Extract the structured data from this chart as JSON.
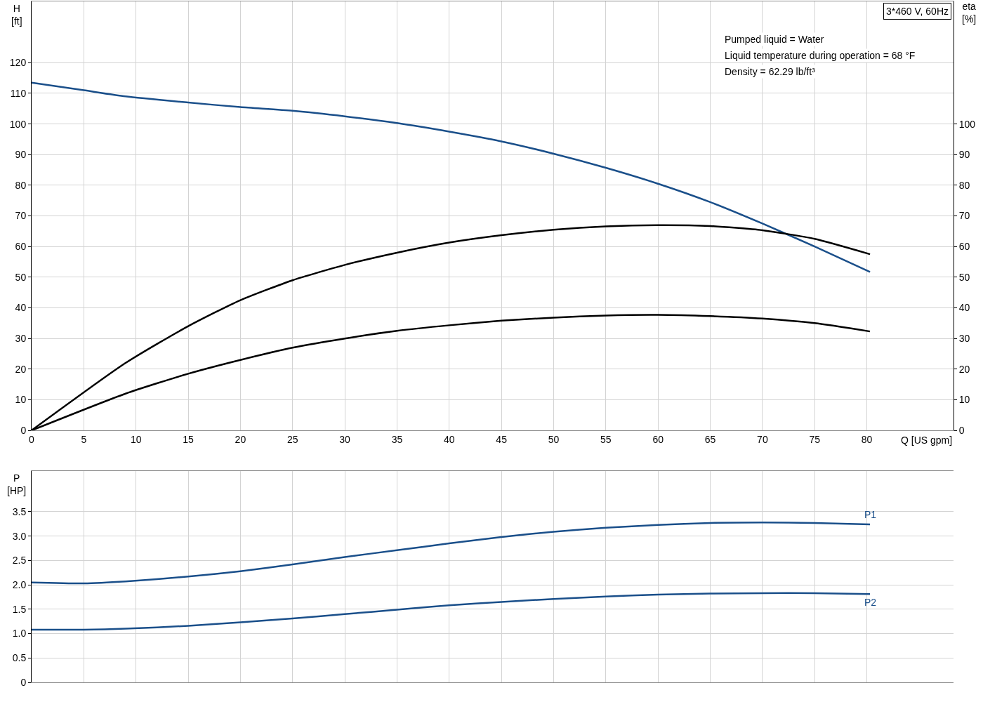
{
  "chart_data": [
    {
      "type": "line",
      "xlabel": "Q [US gpm]",
      "ylabel": "H\n[ft]",
      "y2label": "eta\n[%]",
      "xlim": [
        0,
        88.3
      ],
      "xticks": [
        0,
        5,
        10,
        15,
        20,
        25,
        30,
        35,
        40,
        45,
        50,
        55,
        60,
        65,
        70,
        75,
        80
      ],
      "ylim": [
        0,
        140
      ],
      "yticks": [
        0,
        10,
        20,
        30,
        40,
        50,
        60,
        70,
        80,
        90,
        100,
        110,
        120
      ],
      "y2lim": [
        0,
        140
      ],
      "y2ticks": [
        0,
        10,
        20,
        30,
        40,
        50,
        60,
        70,
        80,
        90,
        100
      ],
      "grid": true,
      "legend": false,
      "marker": "none",
      "line_style": "solid",
      "annotations": [
        "3*460 V, 60Hz",
        "Pumped liquid = Water",
        "Liquid temperature during operation = 68 °F",
        "Density = 62.29 lb/ft³"
      ],
      "series": [
        {
          "color": "#1a4f8a",
          "x": [
            0,
            5,
            9,
            15,
            20,
            25,
            30,
            35,
            40,
            45,
            50,
            55,
            60,
            65,
            70,
            75,
            80.3
          ],
          "values": [
            113.5,
            111,
            109,
            107,
            105.5,
            104.3,
            102.5,
            100.3,
            97.5,
            94.3,
            90.3,
            85.7,
            80.5,
            74.5,
            67.5,
            60,
            51.7
          ]
        },
        {
          "color": "#000000",
          "axis": "y2",
          "x": [
            0,
            9,
            15,
            20,
            25,
            30,
            35,
            40,
            45,
            50,
            55,
            60,
            65,
            70,
            75,
            80.3
          ],
          "values": [
            0,
            22,
            34,
            42.5,
            49,
            54,
            58,
            61.3,
            63.7,
            65.5,
            66.6,
            67,
            66.7,
            65.3,
            62.5,
            57.5
          ]
        },
        {
          "color": "#000000",
          "axis": "y2",
          "x": [
            0,
            9,
            15,
            20,
            25,
            30,
            35,
            40,
            45,
            50,
            55,
            60,
            65,
            70,
            75,
            80.3
          ],
          "values": [
            0,
            12,
            18.5,
            23,
            27,
            30,
            32.5,
            34.3,
            35.8,
            36.8,
            37.5,
            37.7,
            37.3,
            36.5,
            35,
            32.3
          ]
        }
      ]
    },
    {
      "type": "line",
      "ylabel": "P\n[HP]",
      "xlim": [
        0,
        88.3
      ],
      "xticks": [
        0,
        5,
        10,
        15,
        20,
        25,
        30,
        35,
        40,
        45,
        50,
        55,
        60,
        65,
        70,
        75,
        80
      ],
      "ylim": [
        0,
        4.33
      ],
      "yticks": [
        0,
        {
          "value": 0.5,
          "label": "0.5"
        },
        {
          "value": 1,
          "label": "1.0"
        },
        1.5,
        {
          "value": 2,
          "label": "2.0"
        },
        2.5,
        {
          "value": 3,
          "label": "3.0"
        },
        3.5
      ],
      "tick_labels": "y",
      "grid": true,
      "legend": false,
      "marker": "none",
      "line_style": "solid",
      "series": [
        {
          "name": "P1",
          "color": "#1a4f8a",
          "x": [
            0,
            5,
            9,
            15,
            20,
            25,
            30,
            35,
            40,
            45,
            50,
            55,
            60,
            65,
            70,
            75,
            80.3
          ],
          "values": [
            2.05,
            2.03,
            2.07,
            2.17,
            2.28,
            2.42,
            2.57,
            2.71,
            2.85,
            2.98,
            3.09,
            3.17,
            3.23,
            3.27,
            3.28,
            3.27,
            3.24
          ]
        },
        {
          "name": "P2",
          "color": "#1a4f8a",
          "x": [
            0,
            5,
            9,
            15,
            20,
            25,
            30,
            35,
            40,
            45,
            50,
            55,
            60,
            65,
            70,
            75,
            80.3
          ],
          "values": [
            1.08,
            1.08,
            1.1,
            1.16,
            1.23,
            1.31,
            1.4,
            1.49,
            1.58,
            1.65,
            1.71,
            1.76,
            1.8,
            1.82,
            1.83,
            1.83,
            1.81
          ]
        }
      ]
    }
  ]
}
